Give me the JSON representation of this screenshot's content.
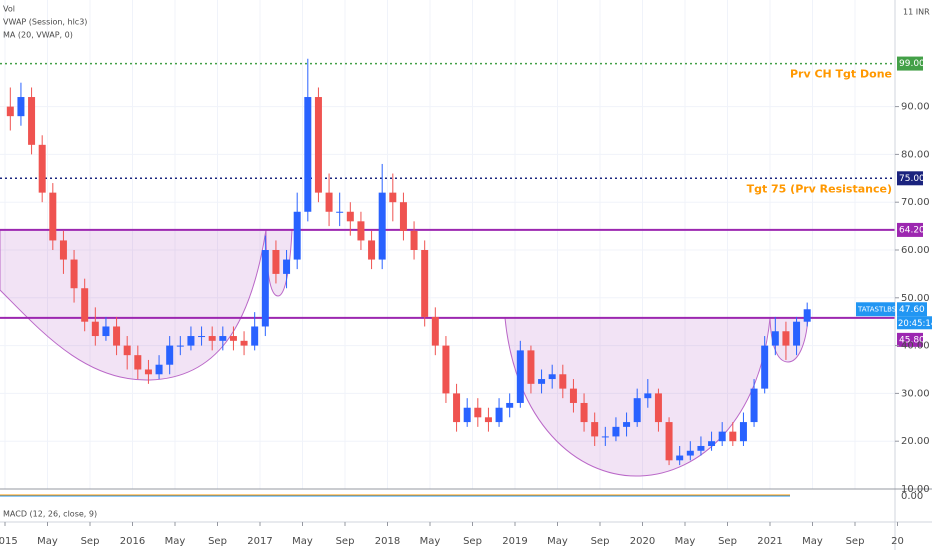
{
  "chart_data": {
    "type": "candlestick",
    "indicator_labels": [
      "Vol",
      "VWAP (Session, hlc3)",
      "MA (20, VWAP, 0)"
    ],
    "volume_axis_label": "11 INR",
    "x": [
      "2015-01",
      "2015-02",
      "2015-03",
      "2015-04",
      "2015-05",
      "2015-06",
      "2015-07",
      "2015-08",
      "2015-09",
      "2015-10",
      "2015-11",
      "2015-12",
      "2016-01",
      "2016-02",
      "2016-03",
      "2016-04",
      "2016-05",
      "2016-06",
      "2016-07",
      "2016-08",
      "2016-09",
      "2016-10",
      "2016-11",
      "2016-12",
      "2017-01",
      "2017-02",
      "2017-03",
      "2017-04",
      "2017-05",
      "2017-06",
      "2017-07",
      "2017-08",
      "2017-09",
      "2017-10",
      "2017-11",
      "2017-12",
      "2018-01",
      "2018-02",
      "2018-03",
      "2018-04",
      "2018-05",
      "2018-06",
      "2018-07",
      "2018-08",
      "2018-09",
      "2018-10",
      "2018-11",
      "2018-12",
      "2019-01",
      "2019-02",
      "2019-03",
      "2019-04",
      "2019-05",
      "2019-06",
      "2019-07",
      "2019-08",
      "2019-09",
      "2019-10",
      "2019-11",
      "2019-12",
      "2020-01",
      "2020-02",
      "2020-03",
      "2020-04",
      "2020-05",
      "2020-06",
      "2020-07",
      "2020-08",
      "2020-09",
      "2020-10",
      "2020-11",
      "2020-12",
      "2021-01",
      "2021-02",
      "2021-03",
      "2021-04"
    ],
    "open": [
      90,
      88,
      92,
      82,
      72,
      62,
      58,
      52,
      45,
      42,
      44,
      40,
      38,
      35,
      34,
      36,
      40,
      40,
      42,
      42,
      41,
      42,
      41,
      40,
      44,
      60,
      55,
      58,
      68,
      92,
      72,
      68,
      68,
      66,
      62,
      58,
      72,
      70,
      64,
      60,
      46,
      40,
      30,
      24,
      27,
      25,
      24,
      27,
      28,
      39,
      32,
      33,
      34,
      31,
      28,
      24,
      21,
      21,
      23,
      24,
      29,
      30,
      24,
      16,
      17,
      18,
      19,
      20,
      22,
      20,
      24,
      31,
      40,
      43,
      40,
      45
    ],
    "high": [
      94,
      95,
      94,
      84,
      74,
      64,
      60,
      54,
      48,
      46,
      46,
      42,
      40,
      37,
      38,
      42,
      42,
      44,
      44,
      44,
      44,
      44,
      43,
      47,
      63,
      62,
      60,
      72,
      100,
      94,
      76,
      72,
      70,
      68,
      64,
      78,
      76,
      72,
      66,
      62,
      48,
      42,
      32,
      29,
      29,
      27,
      29,
      30,
      41,
      40,
      35,
      36,
      36,
      33,
      30,
      26,
      23,
      25,
      26,
      31,
      33,
      31,
      25,
      19,
      20,
      21,
      22,
      24,
      24,
      26,
      33,
      42,
      46,
      45,
      46,
      49
    ],
    "low": [
      85,
      86,
      80,
      70,
      60,
      55,
      49,
      43,
      40,
      41,
      38,
      35,
      33,
      32,
      33,
      34,
      38,
      39,
      40,
      39,
      39,
      39,
      38,
      39,
      42,
      53,
      52,
      56,
      66,
      70,
      65,
      65,
      63,
      60,
      56,
      56,
      66,
      62,
      58,
      44,
      38,
      28,
      22,
      23,
      23,
      22,
      23,
      25,
      27,
      30,
      30,
      31,
      29,
      26,
      22,
      19,
      19,
      20,
      21,
      23,
      27,
      22,
      15,
      15,
      16,
      17,
      18,
      19,
      19,
      19,
      23,
      30,
      38,
      37,
      38,
      44
    ],
    "close": [
      88,
      92,
      82,
      72,
      62,
      58,
      52,
      45,
      42,
      44,
      40,
      38,
      35,
      34,
      36,
      40,
      40,
      42,
      42,
      41,
      42,
      41,
      40,
      44,
      60,
      55,
      58,
      68,
      92,
      72,
      68,
      68,
      66,
      62,
      58,
      72,
      70,
      64,
      60,
      46,
      40,
      30,
      24,
      27,
      25,
      24,
      27,
      28,
      39,
      32,
      33,
      34,
      31,
      28,
      24,
      21,
      21,
      23,
      24,
      29,
      30,
      24,
      16,
      17,
      18,
      19,
      20,
      22,
      20,
      24,
      31,
      40,
      43,
      40,
      45,
      47.6
    ],
    "up_color": "#2962ff",
    "down_color": "#ef5350",
    "ylim": [
      10,
      112.3
    ],
    "yticks": [
      {
        "value": 10,
        "label": "10.00"
      },
      {
        "value": 20,
        "label": "20.00"
      },
      {
        "value": 30,
        "label": "30.00"
      },
      {
        "value": 40,
        "label": "40.00"
      },
      {
        "value": 50,
        "label": "50.00"
      },
      {
        "value": 60,
        "label": "60.00"
      },
      {
        "value": 70,
        "label": "70.00"
      },
      {
        "value": 80,
        "label": "80.00"
      },
      {
        "value": 90,
        "label": "90.00"
      }
    ],
    "xticks": [
      {
        "value": "2015-01",
        "label": "2015"
      },
      {
        "value": "2015-05",
        "label": "May"
      },
      {
        "value": "2015-09",
        "label": "Sep"
      },
      {
        "value": "2016-01",
        "label": "2016"
      },
      {
        "value": "2016-05",
        "label": "May"
      },
      {
        "value": "2016-09",
        "label": "Sep"
      },
      {
        "value": "2017-01",
        "label": "2017"
      },
      {
        "value": "2017-05",
        "label": "May"
      },
      {
        "value": "2017-09",
        "label": "Sep"
      },
      {
        "value": "2018-01",
        "label": "2018"
      },
      {
        "value": "2018-05",
        "label": "May"
      },
      {
        "value": "2018-09",
        "label": "Sep"
      },
      {
        "value": "2019-01",
        "label": "2019"
      },
      {
        "value": "2019-05",
        "label": "May"
      },
      {
        "value": "2019-09",
        "label": "Sep"
      },
      {
        "value": "2020-01",
        "label": "2020"
      },
      {
        "value": "2020-05",
        "label": "May"
      },
      {
        "value": "2020-09",
        "label": "Sep"
      },
      {
        "value": "2021-01",
        "label": "2021"
      },
      {
        "value": "2021-05",
        "label": "May"
      },
      {
        "value": "2021-09",
        "label": "Sep"
      },
      {
        "value": "2022-01",
        "label": "20"
      }
    ],
    "grid": true,
    "levels": [
      {
        "value": 99,
        "label": "99.00",
        "color": "#43a047",
        "dash": "dotted",
        "annotation": "Prv CH Tgt Done",
        "annotation_color": "#ff9800"
      },
      {
        "value": 75,
        "label": "75.00",
        "color": "#1a237e",
        "dash": "dotted",
        "annotation": "Tgt 75 (Prv Resistance)",
        "annotation_color": "#ff9800"
      },
      {
        "value": 64.2,
        "label": "64.20",
        "color": "#9c27b0",
        "dash": "solid"
      },
      {
        "value": 45.8,
        "label": "45.80",
        "color": "#9c27b0",
        "dash": "solid"
      }
    ],
    "symbol": "TATASTLBSL",
    "last_price": {
      "value": 47.6,
      "label": "47.60"
    },
    "countdown": "20:45:14",
    "macd_label": "MACD (12, 26, close, 9)",
    "macd_ticks": [
      {
        "value": 0,
        "label": "0.00"
      }
    ]
  }
}
